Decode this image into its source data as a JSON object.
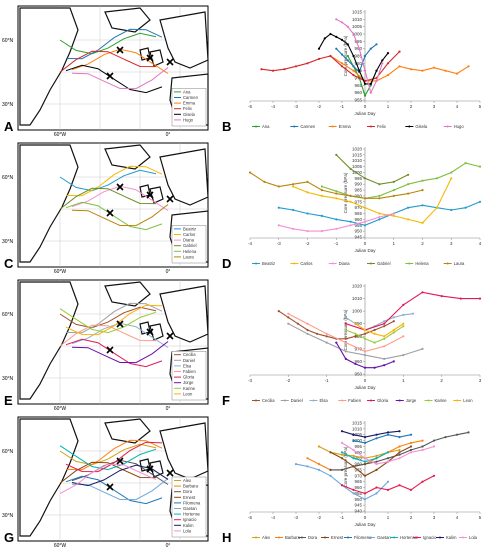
{
  "map_labels": {
    "lat_top": "60°N",
    "lat_bottom": "30°N",
    "lon_left": "60°W",
    "lon_right": "0°"
  },
  "panels": [
    {
      "map_label": "A",
      "chart_label": "B"
    },
    {
      "map_label": "C",
      "chart_label": "D"
    },
    {
      "map_label": "E",
      "chart_label": "F"
    },
    {
      "map_label": "G",
      "chart_label": "H"
    }
  ],
  "chart_data": [
    {
      "type": "line",
      "panel": "B",
      "xlabel": "Julian Day",
      "ylabel": "Core pressure (hPa)",
      "xlim": [
        -5,
        5
      ],
      "ylim": [
        955,
        1015
      ],
      "xticks": [
        -5,
        -4,
        -3,
        -2,
        -1,
        0,
        1,
        2,
        3,
        4,
        5
      ],
      "yticks": [
        955,
        960,
        965,
        970,
        975,
        980,
        985,
        990,
        995,
        1000,
        1005,
        1010,
        1015
      ],
      "series": [
        {
          "name": "Ana",
          "color": "#2ca02c",
          "x": [
            -0.75,
            -0.5,
            -0.25,
            0,
            0.25,
            0.5
          ],
          "y": [
            985,
            978,
            970,
            958,
            965,
            975
          ]
        },
        {
          "name": "Carmen",
          "color": "#1f77b4",
          "x": [
            -1.25,
            -1,
            -0.75,
            -0.5,
            -0.25,
            0,
            0.25,
            0.5
          ],
          "y": [
            990,
            986,
            982,
            978,
            974,
            985,
            990,
            993
          ]
        },
        {
          "name": "Emma",
          "color": "#ff7f0e",
          "x": [
            -1.5,
            -1,
            -0.5,
            0,
            0.5,
            1,
            1.5,
            2,
            2.5,
            3,
            3.5,
            4,
            4.5
          ],
          "y": [
            985,
            980,
            975,
            968,
            968,
            972,
            978,
            976,
            975,
            977,
            975,
            973,
            978
          ]
        },
        {
          "name": "Felix",
          "color": "#d62728",
          "x": [
            -4.5,
            -4,
            -3.5,
            -3,
            -2.5,
            -2,
            -1.5,
            -1,
            -0.5,
            0,
            0.5,
            1,
            1.5
          ],
          "y": [
            976,
            975,
            976,
            978,
            980,
            983,
            985,
            978,
            972,
            968,
            970,
            980,
            988
          ]
        },
        {
          "name": "Gisela",
          "color": "#000000",
          "x": [
            -2,
            -1.75,
            -1.5,
            -1.25,
            -1,
            -0.75,
            -0.5,
            -0.25,
            0,
            0.25,
            0.5,
            0.75,
            1
          ],
          "y": [
            990,
            997,
            1000,
            998,
            996,
            993,
            985,
            975,
            966,
            966,
            975,
            982,
            987
          ]
        },
        {
          "name": "Hugo",
          "color": "#e377c2",
          "x": [
            -1.25,
            -1,
            -0.75,
            -0.5,
            -0.25,
            0,
            0.25,
            0.5,
            0.75
          ],
          "y": [
            1010,
            1008,
            1005,
            1000,
            990,
            975,
            960,
            968,
            980
          ]
        }
      ]
    },
    {
      "type": "line",
      "panel": "D",
      "xlabel": "Julian Day",
      "ylabel": "Core pressure (hPa)",
      "xlim": [
        -4,
        4
      ],
      "ylim": [
        945,
        1020
      ],
      "xticks": [
        -4,
        -3,
        -2,
        -1,
        0,
        1,
        2,
        3,
        4
      ],
      "yticks": [
        945,
        950,
        955,
        960,
        965,
        970,
        975,
        980,
        985,
        990,
        995,
        1000,
        1005,
        1010,
        1015,
        1020
      ],
      "series": [
        {
          "name": "Beatriz",
          "color": "#1f9bcf",
          "x": [
            -3,
            -2.5,
            -2,
            -1.5,
            -1,
            -0.5,
            0,
            0.5,
            1,
            1.5,
            2,
            2.5,
            3,
            3.5,
            4
          ],
          "y": [
            970,
            968,
            965,
            963,
            960,
            958,
            955,
            960,
            965,
            970,
            972,
            970,
            968,
            970,
            975
          ]
        },
        {
          "name": "Carlos",
          "color": "#f5b800",
          "x": [
            -2.5,
            -2,
            -1.5,
            -1,
            -0.5,
            0,
            0.5,
            1,
            1.5,
            2,
            2.5,
            3
          ],
          "y": [
            988,
            983,
            980,
            978,
            975,
            970,
            965,
            963,
            960,
            957,
            970,
            995
          ]
        },
        {
          "name": "Diana",
          "color": "#f78fd3",
          "x": [
            -3,
            -2.5,
            -2,
            -1.5,
            -1,
            -0.5,
            0,
            0.5,
            1
          ],
          "y": [
            955,
            952,
            950,
            950,
            952,
            955,
            958,
            962,
            965
          ]
        },
        {
          "name": "Gabriel",
          "color": "#6b8e23",
          "x": [
            -1,
            -0.5,
            0,
            0.5,
            1,
            1.5
          ],
          "y": [
            1015,
            1003,
            995,
            990,
            992,
            998
          ]
        },
        {
          "name": "Helena",
          "color": "#7fbf3f",
          "x": [
            -1.5,
            -1,
            -0.5,
            0,
            0.5,
            1,
            1.5,
            2,
            2.5,
            3,
            3.5,
            4
          ],
          "y": [
            988,
            984,
            980,
            978,
            980,
            985,
            990,
            993,
            995,
            1000,
            1008,
            1005
          ]
        },
        {
          "name": "Laura",
          "color": "#b8860b",
          "x": [
            -4,
            -3.5,
            -3,
            -2.5,
            -2,
            -1.5,
            -1,
            -0.5,
            0,
            0.5,
            1,
            1.5,
            2
          ],
          "y": [
            1000,
            992,
            988,
            990,
            992,
            985,
            982,
            980,
            978,
            978,
            980,
            982,
            985
          ]
        }
      ]
    },
    {
      "type": "line",
      "panel": "F",
      "xlabel": "Julian Day",
      "ylabel": "Core pressure (hPa)",
      "xlim": [
        -3,
        3
      ],
      "ylim": [
        950,
        1020
      ],
      "xticks": [
        -3,
        -2,
        -1,
        0,
        1,
        2,
        3
      ],
      "yticks": [
        950,
        960,
        970,
        980,
        990,
        1000,
        1010,
        1020
      ],
      "series": [
        {
          "name": "Cecilia",
          "color": "#a0522d",
          "x": [
            -2.25,
            -2,
            -1.75,
            -1.5,
            -1.25,
            -1,
            -0.75,
            -0.5,
            -0.25,
            0,
            0.25,
            0.5,
            0.75
          ],
          "y": [
            1000,
            995,
            990,
            985,
            982,
            980,
            978,
            978,
            980,
            982,
            985,
            988,
            992
          ]
        },
        {
          "name": "Daniel",
          "color": "#9aa0a6",
          "x": [
            -2,
            -1.5,
            -1,
            -0.5,
            0,
            0.5,
            1,
            1.5
          ],
          "y": [
            990,
            982,
            975,
            968,
            965,
            962,
            965,
            970
          ]
        },
        {
          "name": "Elsa",
          "color": "#8fb0c8",
          "x": [
            -0.5,
            -0.25,
            0,
            0.25,
            0.5,
            0.75,
            1,
            1.25
          ],
          "y": [
            995,
            990,
            985,
            988,
            992,
            995,
            997,
            998
          ]
        },
        {
          "name": "Fabien",
          "color": "#ff9a8b",
          "x": [
            -2,
            -1.5,
            -1,
            -0.5,
            0,
            0.5,
            1
          ],
          "y": [
            998,
            990,
            982,
            975,
            968,
            972,
            980
          ]
        },
        {
          "name": "Gloria",
          "color": "#e0195a",
          "x": [
            -0.5,
            0,
            0.5,
            1,
            1.5,
            2,
            2.5,
            3
          ],
          "y": [
            990,
            985,
            990,
            1005,
            1015,
            1012,
            1010,
            1010
          ]
        },
        {
          "name": "Jorge",
          "color": "#6a0dad",
          "x": [
            -0.75,
            -0.5,
            -0.25,
            0,
            0.25,
            0.5,
            0.75
          ],
          "y": [
            975,
            962,
            958,
            955,
            955,
            957,
            960
          ]
        },
        {
          "name": "Karine",
          "color": "#9acd32",
          "x": [
            -0.5,
            -0.25,
            0,
            0.25,
            0.5,
            0.75,
            1
          ],
          "y": [
            985,
            982,
            978,
            975,
            978,
            983,
            988
          ]
        },
        {
          "name": "Leon",
          "color": "#ffb000",
          "x": [
            -0.25,
            0,
            0.25,
            0.5,
            0.75,
            1
          ],
          "y": [
            990,
            985,
            982,
            980,
            985,
            990
          ]
        }
      ]
    },
    {
      "type": "line",
      "panel": "H",
      "xlabel": "Julian Day",
      "ylabel": "Core pressure (hPa)",
      "xlim": [
        -5,
        5
      ],
      "ylim": [
        940,
        1015
      ],
      "xticks": [
        -5,
        -4,
        -3,
        -2,
        -1,
        0,
        1,
        2,
        3,
        4,
        5
      ],
      "yticks": [
        940,
        945,
        950,
        955,
        960,
        965,
        970,
        975,
        980,
        985,
        990,
        995,
        1000,
        1005,
        1010,
        1015
      ],
      "series": [
        {
          "name": "Alex",
          "color": "#d4a017",
          "x": [
            -2,
            -1.5,
            -1,
            -0.5,
            0,
            0.5,
            1,
            1.5
          ],
          "y": [
            995,
            990,
            988,
            987,
            985,
            987,
            990,
            992
          ]
        },
        {
          "name": "Barbara",
          "color": "#ff7f0e",
          "x": [
            -2.5,
            -2,
            -1.5,
            -1,
            -0.5,
            0,
            0.5,
            1,
            1.5,
            2,
            2.5
          ],
          "y": [
            985,
            980,
            975,
            975,
            978,
            980,
            985,
            990,
            995,
            998,
            1000
          ]
        },
        {
          "name": "Dora",
          "color": "#555555",
          "x": [
            -1.5,
            -1,
            -0.5,
            0,
            0.5,
            1,
            1.5,
            2,
            2.5,
            3,
            3.5,
            4,
            4.5
          ],
          "y": [
            975,
            975,
            978,
            980,
            982,
            985,
            988,
            992,
            995,
            1000,
            1003,
            1005,
            1007
          ]
        },
        {
          "name": "Ernest",
          "color": "#8b4513",
          "x": [
            -1.5,
            -1,
            -0.5,
            0,
            0.5,
            1,
            1.5,
            2
          ],
          "y": [
            990,
            985,
            978,
            970,
            975,
            982,
            990,
            995
          ]
        },
        {
          "name": "Filomena",
          "color": "#1f77b4",
          "x": [
            -0.5,
            0,
            0.5,
            1,
            1.5,
            2
          ],
          "y": [
            1000,
            998,
            1002,
            1005,
            1003,
            1005
          ]
        },
        {
          "name": "Gaetan",
          "color": "#6fa8dc",
          "x": [
            -3,
            -2.5,
            -2,
            -1.5,
            -1,
            -0.5,
            0,
            0.5,
            1
          ],
          "y": [
            980,
            978,
            975,
            970,
            962,
            955,
            950,
            955,
            965
          ]
        },
        {
          "name": "Hortense",
          "color": "#00b3b3",
          "x": [
            -1,
            -0.5,
            0,
            0.5,
            1
          ],
          "y": [
            990,
            985,
            982,
            985,
            990
          ]
        },
        {
          "name": "Ignacio",
          "color": "#e6194b",
          "x": [
            -1,
            -0.5,
            0,
            0.5,
            1,
            1.5,
            2,
            2.5,
            3
          ],
          "y": [
            962,
            958,
            955,
            960,
            958,
            962,
            958,
            965,
            970
          ]
        },
        {
          "name": "Kalim",
          "color": "#1a1a66",
          "x": [
            -1,
            -0.5,
            0,
            0.5,
            1,
            1.5
          ],
          "y": [
            1008,
            1005,
            1003,
            1005,
            1007,
            1008
          ]
        },
        {
          "name": "Lola",
          "color": "#f78fd3",
          "x": [
            -1,
            -0.5,
            0,
            0.5,
            1,
            1.5,
            2,
            2.5,
            3
          ],
          "y": [
            998,
            992,
            985,
            980,
            982,
            985,
            990,
            992,
            995
          ]
        }
      ]
    }
  ]
}
